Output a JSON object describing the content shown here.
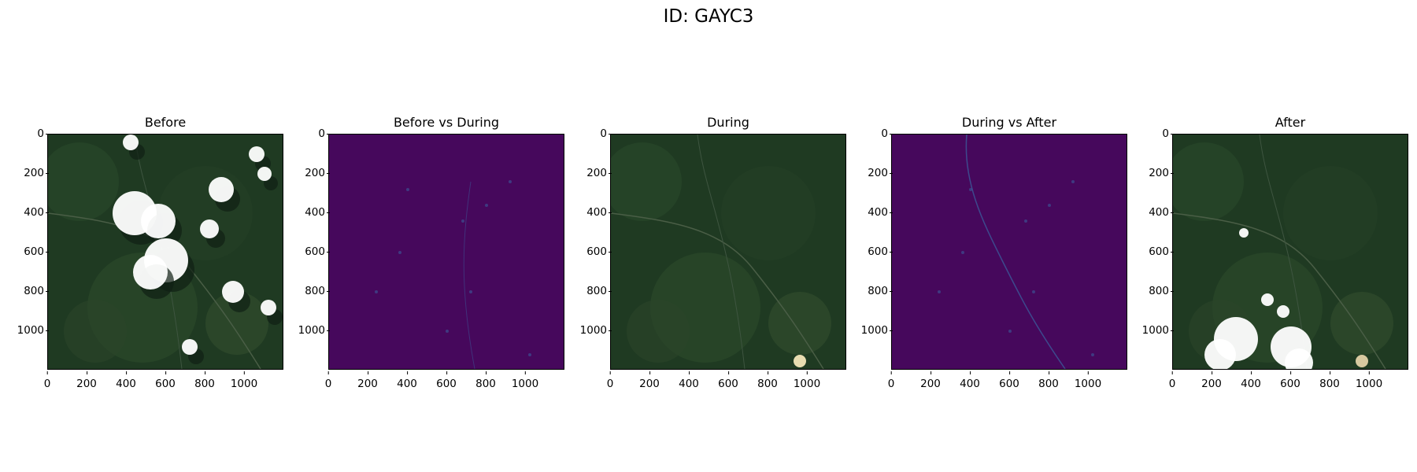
{
  "figure": {
    "title": "ID: GAYC3"
  },
  "panels": [
    {
      "title": "Before",
      "kind": "rgb_cloudy"
    },
    {
      "title": "Before vs During",
      "kind": "diff"
    },
    {
      "title": "During",
      "kind": "rgb_clear"
    },
    {
      "title": "During vs After",
      "kind": "diff_river"
    },
    {
      "title": "After",
      "kind": "rgb_cloudy_bottom"
    }
  ],
  "axes": {
    "y_ticks": [
      "0",
      "200",
      "400",
      "600",
      "800",
      "1000"
    ],
    "x_ticks": [
      "0",
      "200",
      "400",
      "600",
      "800",
      "1000"
    ],
    "extent": [
      0,
      1200
    ]
  },
  "colors": {
    "vegetation": "#1f3a22",
    "cloud": "#ffffff",
    "diff_base": "#46085c"
  }
}
